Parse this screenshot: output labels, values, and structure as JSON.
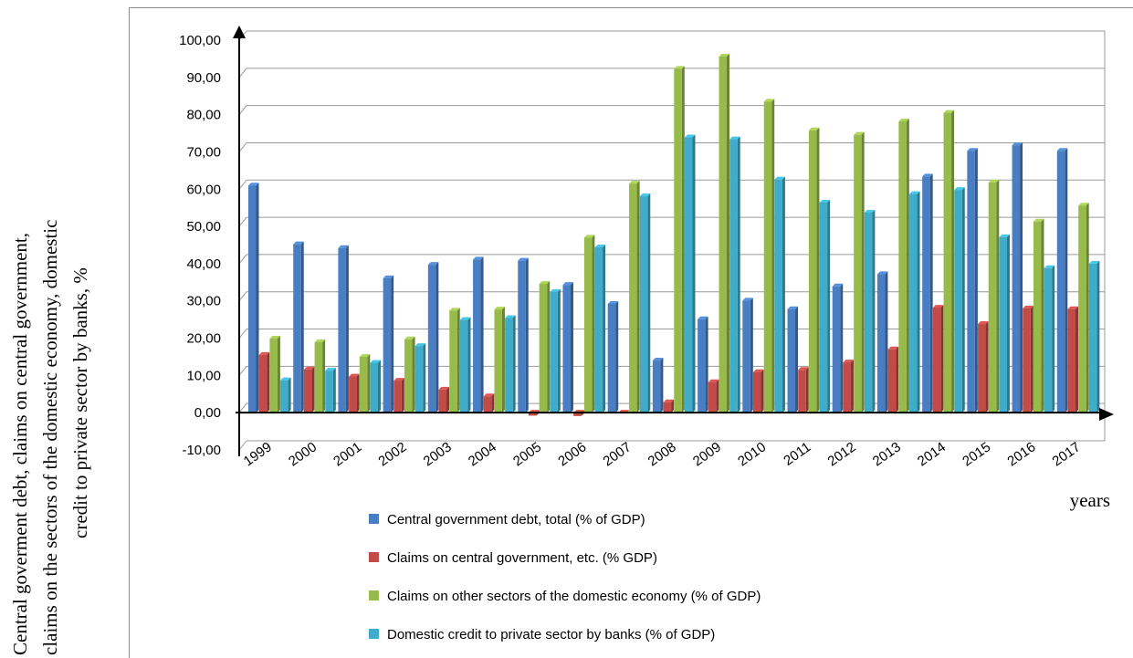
{
  "chart_data": {
    "type": "bar",
    "categories": [
      "1999",
      "2000",
      "2001",
      "2002",
      "2003",
      "2004",
      "2005",
      "2006",
      "2007",
      "2008",
      "2009",
      "2010",
      "2011",
      "2012",
      "2013",
      "2014",
      "2015",
      "2016",
      "2017"
    ],
    "series": [
      {
        "name": "Central government debt, total (% of GDP)",
        "color": "#4a7ec2",
        "values": [
          61.0,
          45.2,
          44.2,
          36.1,
          39.7,
          41.1,
          40.8,
          34.3,
          29.2,
          14.0,
          25.1,
          30.1,
          27.8,
          33.9,
          37.2,
          63.4,
          70.3,
          71.8,
          70.3
        ]
      },
      {
        "name": "Claims on central government, etc. (% GDP)",
        "color": "#c24b47",
        "values": [
          15.5,
          11.6,
          9.7,
          8.6,
          6.2,
          4.4,
          -0.8,
          -0.9,
          0.0,
          2.8,
          8.2,
          10.9,
          11.5,
          13.5,
          17.0,
          28.2,
          23.8,
          28.0,
          27.8
        ]
      },
      {
        "name": "Claims on other sectors of the domestic economy (% of GDP)",
        "color": "#97bb4b",
        "values": [
          19.9,
          18.9,
          15.0,
          19.7,
          27.4,
          27.7,
          34.6,
          47.0,
          61.5,
          92.3,
          95.6,
          83.5,
          75.8,
          74.6,
          78.2,
          80.5,
          61.8,
          51.3,
          55.6
        ]
      },
      {
        "name": "Domestic credit to private sector by banks (% of GDP)",
        "color": "#3fadc9",
        "values": [
          8.7,
          11.3,
          13.4,
          17.9,
          24.9,
          25.4,
          32.4,
          44.4,
          58.1,
          73.9,
          73.4,
          62.6,
          56.4,
          53.7,
          58.7,
          59.8,
          47.1,
          38.8,
          40.0
        ]
      }
    ],
    "y_ticks": [
      "-10,00",
      "0,00",
      "10,00",
      "20,00",
      "30,00",
      "40,00",
      "50,00",
      "60,00",
      "70,00",
      "80,00",
      "90,00",
      "100,00"
    ],
    "ylim": [
      -10,
      100
    ],
    "ylabel": "Central goverment debt, claims on central government, claims on the sectors of the domestic economy, domestic credit to private sector by banks, %",
    "ylabel_lines": [
      "Central goverment debt, claims on central government,",
      "claims on the sectors of the domestic economy, domestic",
      "credit to private sector by banks, %"
    ],
    "xlabel": "years",
    "grid": true,
    "legend_position": "bottom"
  }
}
